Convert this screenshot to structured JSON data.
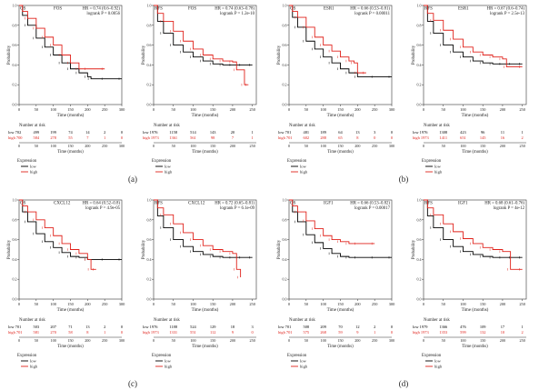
{
  "colors": {
    "low": "#000000",
    "high": "#e0221b",
    "axis": "#333333"
  },
  "common": {
    "xlabel": "Time (months)",
    "ylabel": "Probability",
    "risk_title": "Number at risk",
    "expr_title": "Expression",
    "legend_low": "low",
    "legend_high": "high",
    "yticks": [
      "0.0",
      "0.2",
      "0.4",
      "0.6",
      "0.8",
      "1.0"
    ]
  },
  "group_labels": [
    "(a)",
    "(b)",
    "(c)",
    "(d)"
  ],
  "chart_data": [
    {
      "type": "line",
      "corner": "OS",
      "gene": "FOS",
      "hr": "HR = 0.74 (0.6–0.92)",
      "logrank": "logrank P = 0.0056",
      "xticks": [
        0,
        50,
        100,
        150,
        200,
        250,
        300
      ],
      "xlim": [
        0,
        300
      ],
      "ylim": [
        0,
        1
      ],
      "series": [
        {
          "name": "low",
          "x": [
            0,
            10,
            25,
            50,
            75,
            100,
            125,
            150,
            175,
            200,
            210,
            250,
            300
          ],
          "y": [
            1,
            0.9,
            0.8,
            0.67,
            0.58,
            0.5,
            0.42,
            0.36,
            0.32,
            0.28,
            0.26,
            0.26,
            0.26
          ]
        },
        {
          "name": "high",
          "x": [
            0,
            10,
            25,
            50,
            75,
            100,
            125,
            150,
            175,
            200,
            250
          ],
          "y": [
            1,
            0.94,
            0.87,
            0.77,
            0.68,
            0.6,
            0.5,
            0.42,
            0.36,
            0.36,
            0.36
          ]
        }
      ],
      "risk": {
        "low_label": "low 702",
        "high_label": "high 700",
        "low": [
          "499",
          "199",
          "74",
          "14",
          "2",
          "0"
        ],
        "high": [
          "584",
          "278",
          "55",
          "7",
          "1",
          "0"
        ]
      }
    },
    {
      "type": "line",
      "corner": "RFS",
      "gene": "FOS",
      "hr": "HR = 0.74 (0.63–0.78)",
      "logrank": "logrank P = 1.2e-10",
      "xticks": [
        0,
        50,
        100,
        150,
        200,
        250
      ],
      "xlim": [
        0,
        260
      ],
      "ylim": [
        0,
        1
      ],
      "series": [
        {
          "name": "low",
          "x": [
            0,
            10,
            25,
            50,
            75,
            100,
            125,
            150,
            175,
            200,
            225,
            250
          ],
          "y": [
            1,
            0.84,
            0.72,
            0.6,
            0.53,
            0.48,
            0.44,
            0.41,
            0.4,
            0.4,
            0.4,
            0.4
          ]
        },
        {
          "name": "high",
          "x": [
            0,
            10,
            25,
            50,
            75,
            100,
            125,
            150,
            175,
            200,
            210,
            230,
            240
          ],
          "y": [
            1,
            0.92,
            0.84,
            0.74,
            0.64,
            0.56,
            0.5,
            0.46,
            0.44,
            0.43,
            0.35,
            0.2,
            0.2
          ]
        }
      ],
      "risk": {
        "low_label": "low 1976",
        "high_label": "high 1973",
        "low": [
          "1158",
          "514",
          "143",
          "20",
          "1"
        ],
        "high": [
          "1361",
          "561",
          "98",
          "7",
          "1"
        ]
      }
    },
    {
      "type": "line",
      "corner": "OS",
      "gene": "ESR1",
      "hr": "HR = 0.66 (0.53–0.81)",
      "logrank": "logrank P = 0.00011",
      "xticks": [
        0,
        50,
        100,
        150,
        200,
        250,
        300
      ],
      "xlim": [
        0,
        300
      ],
      "ylim": [
        0,
        1
      ],
      "series": [
        {
          "name": "low",
          "x": [
            0,
            10,
            25,
            50,
            75,
            100,
            125,
            150,
            175,
            200,
            250,
            300
          ],
          "y": [
            1,
            0.88,
            0.78,
            0.64,
            0.56,
            0.48,
            0.42,
            0.36,
            0.32,
            0.28,
            0.28,
            0.28
          ]
        },
        {
          "name": "high",
          "x": [
            0,
            10,
            25,
            50,
            75,
            100,
            125,
            150,
            175,
            190,
            200,
            225
          ],
          "y": [
            1,
            0.94,
            0.88,
            0.78,
            0.68,
            0.6,
            0.54,
            0.48,
            0.44,
            0.42,
            0.32,
            0.32
          ]
        }
      ],
      "risk": {
        "low_label": "low 701",
        "high_label": "high 701",
        "low": [
          "481",
          "189",
          "64",
          "13",
          "3",
          "0"
        ],
        "high": [
          "602",
          "288",
          "65",
          "8",
          "0",
          "0"
        ]
      }
    },
    {
      "type": "line",
      "corner": "RFS",
      "gene": "ESR1",
      "hr": "HR = 0.67 (0.6–0.74)",
      "logrank": "logrank P = 2.5e-13",
      "xticks": [
        0,
        50,
        100,
        150,
        200,
        250
      ],
      "xlim": [
        0,
        260
      ],
      "ylim": [
        0,
        1
      ],
      "series": [
        {
          "name": "low",
          "x": [
            0,
            10,
            25,
            50,
            75,
            100,
            125,
            150,
            175,
            200,
            225,
            250
          ],
          "y": [
            1,
            0.84,
            0.72,
            0.6,
            0.53,
            0.48,
            0.44,
            0.42,
            0.41,
            0.41,
            0.41,
            0.41
          ]
        },
        {
          "name": "high",
          "x": [
            0,
            10,
            25,
            50,
            75,
            100,
            125,
            150,
            175,
            200,
            210,
            250
          ],
          "y": [
            1,
            0.92,
            0.85,
            0.75,
            0.66,
            0.58,
            0.53,
            0.5,
            0.48,
            0.46,
            0.38,
            0.38
          ]
        }
      ],
      "risk": {
        "low_label": "low 1976",
        "high_label": "high 1973",
        "low": [
          "1308",
          "423",
          "96",
          "11",
          "1"
        ],
        "high": [
          "1411",
          "651",
          "145",
          "16",
          "2"
        ]
      }
    },
    {
      "type": "line",
      "corner": "OS",
      "gene": "CXCL12",
      "hr": "HR = 0.64 (0.52–0.8)",
      "logrank": "logrank P = 4.9e-05",
      "xticks": [
        0,
        50,
        100,
        150,
        200,
        250,
        300
      ],
      "xlim": [
        0,
        300
      ],
      "ylim": [
        0,
        1
      ],
      "series": [
        {
          "name": "low",
          "x": [
            0,
            10,
            25,
            50,
            75,
            100,
            125,
            150,
            175,
            200,
            250,
            300
          ],
          "y": [
            1,
            0.88,
            0.78,
            0.66,
            0.58,
            0.52,
            0.47,
            0.43,
            0.42,
            0.4,
            0.4,
            0.4
          ]
        },
        {
          "name": "high",
          "x": [
            0,
            10,
            25,
            50,
            75,
            100,
            125,
            150,
            175,
            200,
            210,
            225
          ],
          "y": [
            1,
            0.94,
            0.88,
            0.8,
            0.72,
            0.64,
            0.56,
            0.5,
            0.46,
            0.4,
            0.3,
            0.3
          ]
        }
      ],
      "risk": {
        "low_label": "low 701",
        "high_label": "high 701",
        "low": [
          "503",
          "207",
          "71",
          "13",
          "2",
          "0"
        ],
        "high": [
          "581",
          "270",
          "58",
          "8",
          "1",
          "0"
        ]
      }
    },
    {
      "type": "line",
      "corner": "RFS",
      "gene": "CXCL12",
      "hr": "HR = 0.72 (0.65–0.81)",
      "logrank": "logrank P = 6.1e-09",
      "xticks": [
        0,
        50,
        100,
        150,
        200,
        250
      ],
      "xlim": [
        0,
        260
      ],
      "ylim": [
        0,
        1
      ],
      "series": [
        {
          "name": "low",
          "x": [
            0,
            10,
            25,
            50,
            75,
            100,
            125,
            150,
            175,
            200,
            225,
            250
          ],
          "y": [
            1,
            0.84,
            0.72,
            0.6,
            0.53,
            0.48,
            0.45,
            0.43,
            0.42,
            0.42,
            0.42,
            0.42
          ]
        },
        {
          "name": "high",
          "x": [
            0,
            10,
            25,
            50,
            75,
            100,
            125,
            150,
            175,
            200,
            210,
            220
          ],
          "y": [
            1,
            0.92,
            0.85,
            0.76,
            0.67,
            0.6,
            0.54,
            0.5,
            0.48,
            0.46,
            0.3,
            0.22
          ]
        }
      ],
      "risk": {
        "low_label": "low 1976",
        "high_label": "high 1973",
        "low": [
          "1188",
          "524",
          "129",
          "18",
          "3"
        ],
        "high": [
          "1331",
          "551",
          "112",
          "9",
          "0"
        ]
      }
    },
    {
      "type": "line",
      "corner": "OS",
      "gene": "IGF1",
      "hr": "HR = 0.66 (0.53–0.82)",
      "logrank": "logrank P = 0.00017",
      "xticks": [
        0,
        50,
        100,
        150,
        200,
        250,
        300
      ],
      "xlim": [
        0,
        300
      ],
      "ylim": [
        0,
        1
      ],
      "series": [
        {
          "name": "low",
          "x": [
            0,
            10,
            25,
            50,
            75,
            100,
            125,
            150,
            175,
            200,
            250,
            300
          ],
          "y": [
            1,
            0.88,
            0.78,
            0.65,
            0.57,
            0.51,
            0.46,
            0.43,
            0.42,
            0.42,
            0.42,
            0.42
          ]
        },
        {
          "name": "high",
          "x": [
            0,
            10,
            25,
            50,
            75,
            100,
            125,
            150,
            175,
            200,
            250
          ],
          "y": [
            1,
            0.94,
            0.88,
            0.79,
            0.71,
            0.64,
            0.6,
            0.58,
            0.56,
            0.56,
            0.56
          ]
        }
      ],
      "risk": {
        "low_label": "low 701",
        "high_label": "high 701",
        "low": [
          "508",
          "209",
          "70",
          "12",
          "2",
          "0"
        ],
        "high": [
          "575",
          "268",
          "59",
          "9",
          "1",
          "0"
        ]
      }
    },
    {
      "type": "line",
      "corner": "RFS",
      "gene": "IGF1",
      "hr": "HR = 0.68 (0.61–0.76)",
      "logrank": "logrank P = 4e-12",
      "xticks": [
        0,
        50,
        100,
        150,
        200,
        250
      ],
      "xlim": [
        0,
        260
      ],
      "ylim": [
        0,
        1
      ],
      "series": [
        {
          "name": "low",
          "x": [
            0,
            10,
            25,
            50,
            75,
            100,
            125,
            150,
            175,
            200,
            225,
            250
          ],
          "y": [
            1,
            0.84,
            0.72,
            0.6,
            0.53,
            0.48,
            0.45,
            0.43,
            0.42,
            0.42,
            0.42,
            0.42
          ]
        },
        {
          "name": "high",
          "x": [
            0,
            10,
            25,
            50,
            75,
            100,
            125,
            150,
            175,
            200,
            220,
            250
          ],
          "y": [
            1,
            0.92,
            0.85,
            0.76,
            0.68,
            0.61,
            0.56,
            0.52,
            0.5,
            0.48,
            0.3,
            0.3
          ]
        }
      ],
      "risk": {
        "low_label": "low 1979",
        "high_label": "high 1973",
        "low": [
          "1366",
          "476",
          "109",
          "17",
          "1"
        ],
        "high": [
          "1353",
          "599",
          "132",
          "10",
          "2"
        ]
      }
    }
  ]
}
